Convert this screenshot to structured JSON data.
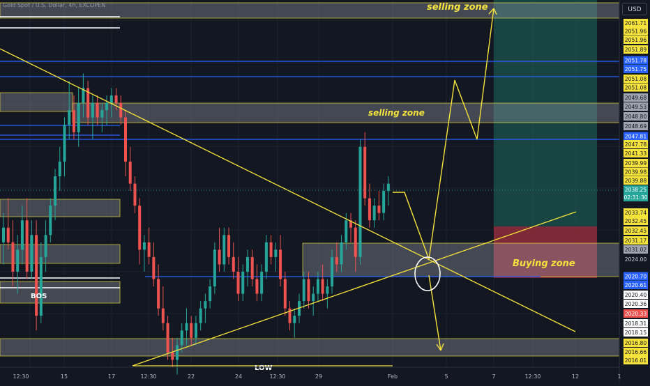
{
  "chart_title": "Gold Spot / U.S. Dollar, 4h, EXCOPEN",
  "currency": "USD",
  "colors": {
    "background": "#131722",
    "grid": "#1e222d",
    "up": "#26a69a",
    "down": "#ef5350",
    "annotation": "#f5e33b",
    "blue_line": "#2962ff",
    "zone": "#9ea3b0",
    "tp_zone": "#1d6a5e",
    "sl_zone": "#a3303f"
  },
  "annotations": {
    "selling_zone_top": "selling zone",
    "selling_zone_mid": "selling zone",
    "buying_zone": "Buying zone",
    "bos": "BOS",
    "low": "LOW"
  },
  "current_price": {
    "value": "2038.25",
    "countdown": "02:31:30"
  },
  "chart_data": {
    "type": "candlestick",
    "title": "",
    "x_tick_labels": [
      "12:30",
      "15",
      "17",
      "12:30",
      "22",
      "24",
      "12:30",
      "29",
      "Feb",
      "5",
      "7",
      "12:30",
      "12",
      "1"
    ],
    "y_tick_labels": [
      "2061.71",
      "2051.96",
      "2051.96",
      "2051.89",
      "2051.78",
      "2051.75",
      "2051.08",
      "2051.08",
      "2049.68",
      "2049.53",
      "2048.80",
      "2048.69",
      "2047.81",
      "2047.78",
      "2041.33",
      "2039.99",
      "2039.98",
      "2039.88",
      "2038.25",
      "2033.74",
      "2032.45",
      "2032.45",
      "2031.17",
      "2031.02",
      "2024.00",
      "2020.70",
      "2020.61",
      "2020.40",
      "2020.36",
      "2020.33",
      "2018.31",
      "2018.15",
      "2016.80",
      "2016.66",
      "2016.01"
    ],
    "label_styles": [
      "yel",
      "yel",
      "yel",
      "yel",
      "blue",
      "blue",
      "yel",
      "yel",
      "gray",
      "gray",
      "gray",
      "gray",
      "blue",
      "yel",
      "yel",
      "yel",
      "yel",
      "yel",
      "cur",
      "yel",
      "yel",
      "yel",
      "yel",
      "gray",
      "plain",
      "blue",
      "blue",
      "white",
      "white",
      "red",
      "white",
      "white",
      "yel",
      "yel",
      "yel"
    ],
    "candles": [
      [
        2030,
        2034,
        2027,
        2032
      ],
      [
        2032,
        2036,
        2029,
        2030
      ],
      [
        2030,
        2033,
        2024,
        2026
      ],
      [
        2026,
        2031,
        2023,
        2029
      ],
      [
        2029,
        2035,
        2027,
        2033
      ],
      [
        2033,
        2036,
        2025,
        2026
      ],
      [
        2026,
        2033,
        2025,
        2031
      ],
      [
        2031,
        2033,
        2018,
        2020
      ],
      [
        2020,
        2030,
        2019,
        2028
      ],
      [
        2028,
        2033,
        2026,
        2031
      ],
      [
        2031,
        2036,
        2030,
        2035
      ],
      [
        2035,
        2040,
        2033,
        2039
      ],
      [
        2039,
        2043,
        2037,
        2041
      ],
      [
        2041,
        2047,
        2039,
        2046
      ],
      [
        2046,
        2052,
        2044,
        2048
      ],
      [
        2048,
        2050,
        2044,
        2045
      ],
      [
        2045,
        2051,
        2043,
        2049
      ],
      [
        2049,
        2053,
        2047,
        2051
      ],
      [
        2051,
        2052,
        2046,
        2047
      ],
      [
        2047,
        2050,
        2044,
        2049
      ],
      [
        2049,
        2050,
        2046,
        2047
      ],
      [
        2047,
        2049,
        2045,
        2048
      ],
      [
        2048,
        2050,
        2046,
        2049
      ],
      [
        2049,
        2051,
        2047,
        2050
      ],
      [
        2050,
        2051,
        2048,
        2049
      ],
      [
        2049,
        2050,
        2046,
        2047
      ],
      [
        2047,
        2048,
        2039,
        2041
      ],
      [
        2041,
        2043,
        2037,
        2038
      ],
      [
        2038,
        2039,
        2034,
        2035
      ],
      [
        2035,
        2036,
        2027,
        2029
      ],
      [
        2029,
        2031,
        2026,
        2030
      ],
      [
        2030,
        2032,
        2027,
        2028
      ],
      [
        2028,
        2030,
        2024,
        2025
      ],
      [
        2025,
        2027,
        2020,
        2021
      ],
      [
        2021,
        2024,
        2018,
        2019
      ],
      [
        2019,
        2020,
        2014,
        2015
      ],
      [
        2015,
        2017,
        2013,
        2014
      ],
      [
        2014,
        2017,
        2012,
        2016
      ],
      [
        2016,
        2019,
        2015,
        2018
      ],
      [
        2018,
        2021,
        2016,
        2019
      ],
      [
        2019,
        2020,
        2016,
        2017
      ],
      [
        2017,
        2020,
        2016,
        2019
      ],
      [
        2019,
        2022,
        2018,
        2021
      ],
      [
        2021,
        2023,
        2019,
        2022
      ],
      [
        2022,
        2025,
        2021,
        2024
      ],
      [
        2024,
        2030,
        2023,
        2029
      ],
      [
        2029,
        2032,
        2026,
        2027
      ],
      [
        2027,
        2032,
        2026,
        2031
      ],
      [
        2031,
        2032,
        2027,
        2028
      ],
      [
        2028,
        2030,
        2025,
        2026
      ],
      [
        2026,
        2028,
        2022,
        2023
      ],
      [
        2023,
        2027,
        2022,
        2026
      ],
      [
        2026,
        2029,
        2024,
        2028
      ],
      [
        2028,
        2029,
        2024,
        2025
      ],
      [
        2025,
        2027,
        2022,
        2023
      ],
      [
        2023,
        2027,
        2022,
        2026
      ],
      [
        2026,
        2031,
        2025,
        2030
      ],
      [
        2030,
        2031,
        2027,
        2028
      ],
      [
        2028,
        2030,
        2026,
        2029
      ],
      [
        2029,
        2031,
        2024,
        2025
      ],
      [
        2025,
        2026,
        2020,
        2021
      ],
      [
        2021,
        2022,
        2018,
        2019
      ],
      [
        2019,
        2021,
        2017,
        2020
      ],
      [
        2020,
        2023,
        2019,
        2022
      ],
      [
        2022,
        2026,
        2021,
        2025
      ],
      [
        2025,
        2026,
        2021,
        2022
      ],
      [
        2022,
        2024,
        2020,
        2023
      ],
      [
        2023,
        2026,
        2022,
        2025
      ],
      [
        2025,
        2027,
        2022,
        2023
      ],
      [
        2023,
        2025,
        2021,
        2024
      ],
      [
        2024,
        2029,
        2023,
        2028
      ],
      [
        2028,
        2030,
        2026,
        2027
      ],
      [
        2027,
        2031,
        2026,
        2030
      ],
      [
        2030,
        2034,
        2029,
        2033
      ],
      [
        2033,
        2034,
        2030,
        2032
      ],
      [
        2032,
        2033,
        2026,
        2028
      ],
      [
        2028,
        2044,
        2027,
        2043
      ],
      [
        2043,
        2045,
        2035,
        2036
      ],
      [
        2036,
        2038,
        2032,
        2033
      ],
      [
        2033,
        2036,
        2032,
        2035
      ],
      [
        2035,
        2037,
        2033,
        2034
      ],
      [
        2034,
        2038,
        2033,
        2037
      ],
      [
        2037,
        2039,
        2035,
        2038
      ]
    ],
    "y_range": [
      2013,
      2063
    ],
    "x_labels_unit": "dates (Jan–Feb), 4h candles"
  }
}
